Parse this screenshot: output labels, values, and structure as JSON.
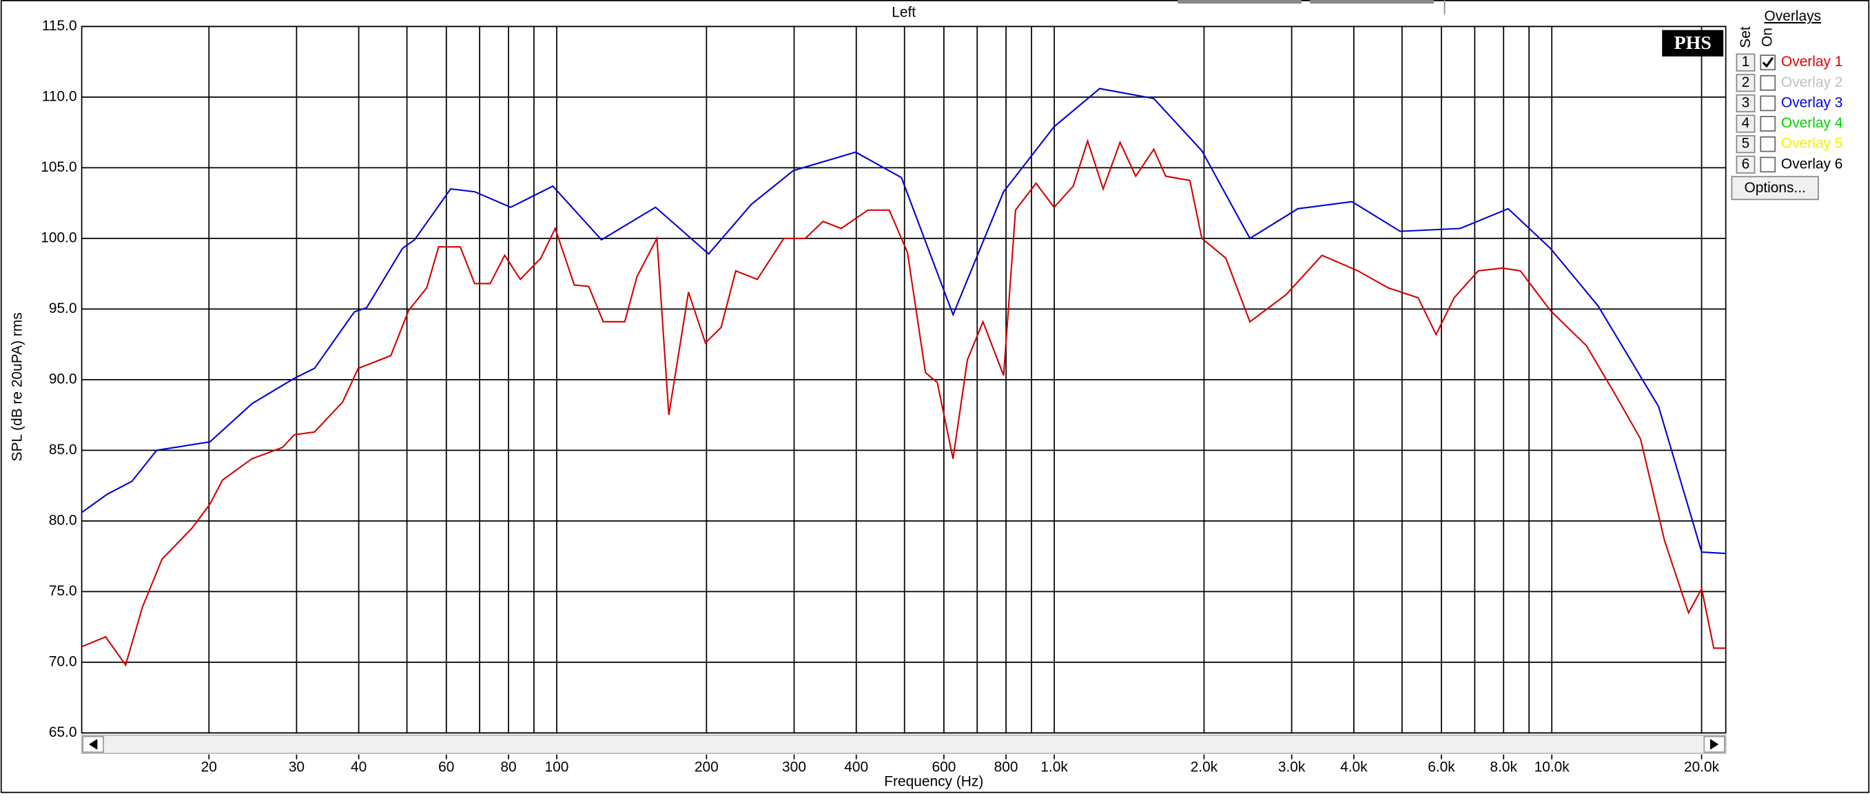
{
  "chart_data": {
    "type": "line",
    "title": "Left",
    "xlabel": "Frequency (Hz)",
    "ylabel": "SPL (dB re 20uPA) rms",
    "xscale": "log",
    "grid": true,
    "xlim": [
      11.1,
      22370
    ],
    "ylim": [
      65,
      115
    ],
    "yticks": [
      {
        "value": 65,
        "label": "65.0"
      },
      {
        "value": 70,
        "label": "70.0"
      },
      {
        "value": 75,
        "label": "75.0"
      },
      {
        "value": 80,
        "label": "80.0"
      },
      {
        "value": 85,
        "label": "85.0"
      },
      {
        "value": 90,
        "label": "90.0"
      },
      {
        "value": 95,
        "label": "95.0"
      },
      {
        "value": 100,
        "label": "100.0"
      },
      {
        "value": 105,
        "label": "105.0"
      },
      {
        "value": 110,
        "label": "110.0"
      },
      {
        "value": 115,
        "label": "115.0"
      }
    ],
    "xticks": [
      20,
      30,
      40,
      60,
      80,
      100,
      200,
      300,
      400,
      600,
      800,
      {
        "value": 1000,
        "label": "1.0k"
      },
      {
        "value": 2000,
        "label": "2.0k"
      },
      {
        "value": 3000,
        "label": "3.0k"
      },
      {
        "value": 4000,
        "label": "4.0k"
      },
      {
        "value": 6000,
        "label": "6.0k"
      },
      {
        "value": 8000,
        "label": "8.0k"
      },
      {
        "value": 10000,
        "label": "10.0k"
      },
      {
        "value": 20000,
        "label": "20.0k"
      }
    ],
    "xgrid_minor": [
      50,
      70,
      90,
      500,
      700,
      900,
      5000,
      7000,
      9000
    ],
    "series": [
      {
        "name": "Overlay 3",
        "color": "#0000d0",
        "x": [
          11.1,
          12.5,
          14.0,
          15.7,
          20.1,
          24.4,
          29.7,
          32.6,
          39.2,
          41.5,
          49.0,
          51.8,
          61.2,
          68.4,
          80.8,
          98.2,
          123,
          158,
          202,
          246,
          299,
          399,
          493,
          626,
          791,
          999,
          1234,
          1585,
          1980,
          2473,
          3088,
          3966,
          4956,
          6544,
          8172,
          9931,
          12400,
          16390,
          20010,
          22370
        ],
        "values": [
          80.6,
          81.9,
          82.8,
          85.0,
          85.6,
          88.3,
          90.1,
          90.8,
          94.8,
          95.1,
          99.3,
          99.9,
          103.5,
          103.3,
          102.2,
          103.7,
          99.9,
          102.2,
          98.9,
          102.4,
          104.8,
          106.1,
          104.3,
          94.6,
          103.3,
          107.9,
          110.6,
          109.9,
          106.2,
          100.0,
          102.1,
          102.6,
          100.5,
          100.7,
          102.1,
          99.3,
          95.2,
          88.1,
          77.8,
          77.7
        ]
      },
      {
        "name": "Overlay 1",
        "color": "#d00000",
        "x": [
          11.1,
          12.4,
          13.6,
          14.7,
          16.1,
          18.5,
          20.1,
          21.3,
          24.4,
          28.1,
          29.7,
          32.6,
          37.1,
          39.9,
          46.4,
          50.4,
          54.8,
          57.9,
          64.0,
          68.4,
          73.5,
          78.6,
          84.5,
          92.9,
          99.3,
          108.5,
          116,
          124,
          137,
          145,
          159,
          168,
          184,
          199,
          214,
          229,
          253,
          286,
          316,
          343,
          373,
          422,
          466,
          507,
          551,
          582,
          626,
          669,
          719,
          791,
          836,
          919,
          999,
          1092,
          1167,
          1254,
          1356,
          1458,
          1585,
          1675,
          1873,
          1980,
          2212,
          2473,
          2921,
          3452,
          4078,
          4688,
          5386,
          5854,
          6366,
          7115,
          7951,
          8645,
          9931,
          11740,
          13490,
          15080,
          16850,
          18830,
          20010,
          21160,
          22370
        ],
        "values": [
          71.1,
          71.8,
          69.8,
          73.9,
          77.3,
          79.5,
          81.2,
          82.9,
          84.4,
          85.2,
          86.1,
          86.3,
          88.4,
          90.8,
          91.7,
          94.9,
          96.5,
          99.4,
          99.4,
          96.8,
          96.8,
          98.8,
          97.1,
          98.6,
          100.7,
          96.7,
          96.6,
          94.1,
          94.1,
          97.3,
          100.0,
          87.5,
          96.2,
          92.6,
          93.7,
          97.7,
          97.1,
          100.0,
          100.0,
          101.2,
          100.7,
          102.0,
          102.0,
          99.0,
          90.5,
          89.8,
          84.4,
          91.4,
          94.1,
          90.3,
          102.0,
          103.9,
          102.2,
          103.7,
          106.9,
          103.5,
          106.8,
          104.4,
          106.3,
          104.4,
          104.1,
          100.0,
          98.6,
          94.1,
          96.0,
          98.8,
          97.7,
          96.5,
          95.8,
          93.2,
          95.8,
          97.7,
          97.9,
          97.7,
          94.9,
          92.4,
          88.8,
          85.8,
          78.6,
          73.5,
          75.2,
          71.0,
          71.0
        ]
      }
    ]
  },
  "logo": "PHS",
  "overlays": {
    "title": "Overlays",
    "set_label": "Set",
    "on_label": "On",
    "options_button": "Options...",
    "rows": [
      {
        "set": "1",
        "name": "Overlay 1",
        "color": "#e00000",
        "checked": true
      },
      {
        "set": "2",
        "name": "Overlay 2",
        "color": "#c0c0c0",
        "checked": false
      },
      {
        "set": "3",
        "name": "Overlay 3",
        "color": "#0000e0",
        "checked": false
      },
      {
        "set": "4",
        "name": "Overlay 4",
        "color": "#00d000",
        "checked": false
      },
      {
        "set": "5",
        "name": "Overlay 5",
        "color": "#f0f000",
        "checked": false
      },
      {
        "set": "6",
        "name": "Overlay 6",
        "color": "#000000",
        "checked": false
      }
    ]
  }
}
